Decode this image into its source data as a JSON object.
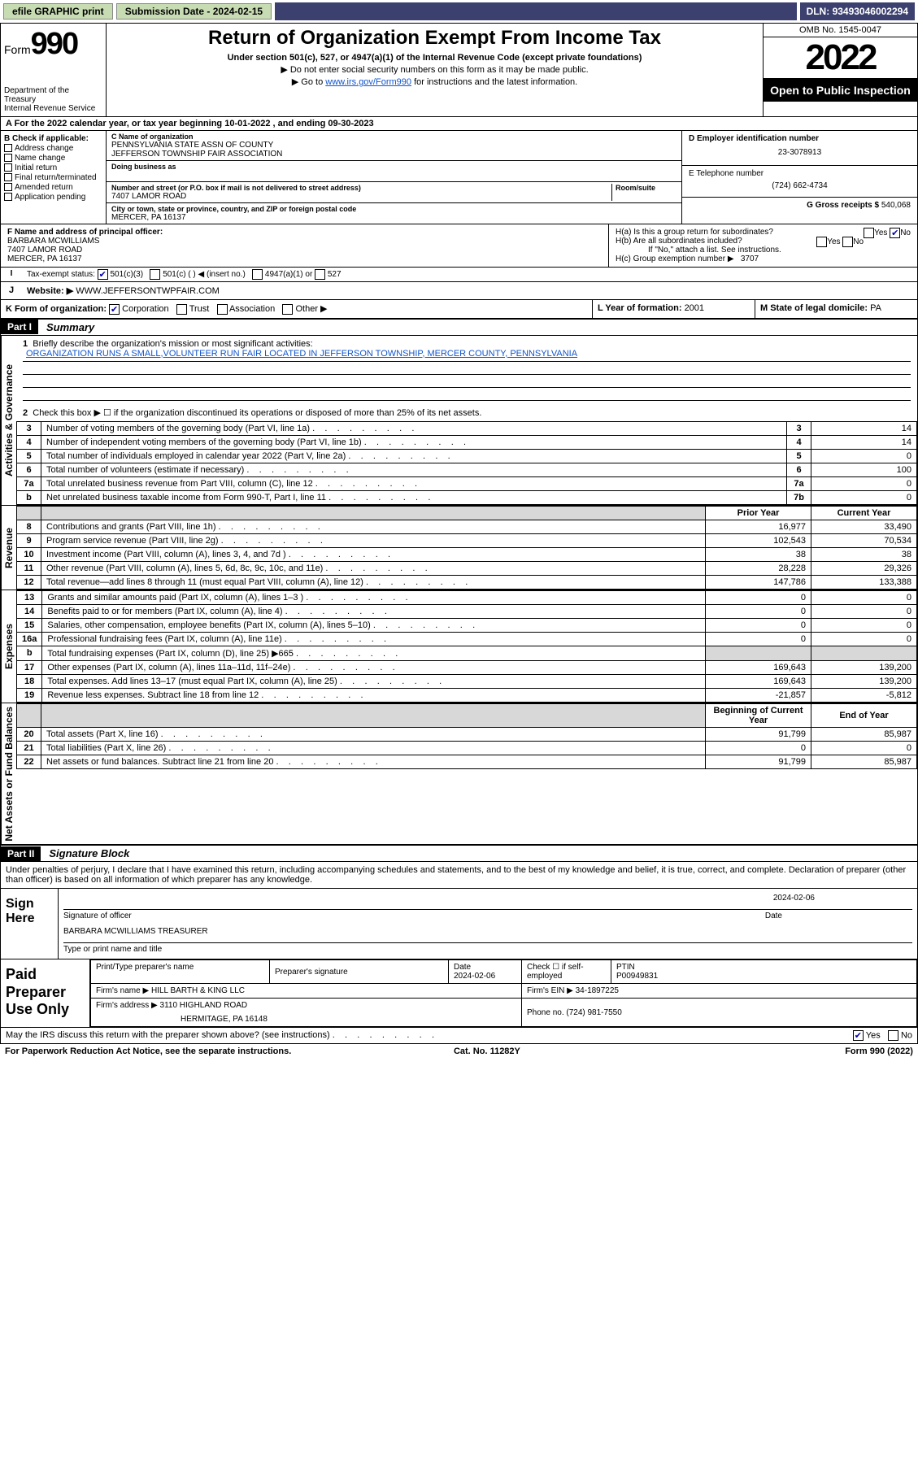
{
  "topbar": {
    "efile": "efile GRAPHIC print",
    "subdate_label": "Submission Date - ",
    "subdate": "2024-02-15",
    "dln_label": "DLN: ",
    "dln": "93493046002294"
  },
  "header": {
    "form": "Form",
    "num": "990",
    "dept": "Department of the Treasury",
    "irs": "Internal Revenue Service",
    "title": "Return of Organization Exempt From Income Tax",
    "under": "Under section 501(c), 527, or 4947(a)(1) of the Internal Revenue Code (except private foundations)",
    "ssn": "▶ Do not enter social security numbers on this form as it may be made public.",
    "goto1": "▶ Go to ",
    "goto_link": "www.irs.gov/Form990",
    "goto2": " for instructions and the latest information.",
    "omb": "OMB No. 1545-0047",
    "year": "2022",
    "open": "Open to Public Inspection"
  },
  "lineA": {
    "text": "A For the 2022 calendar year, or tax year beginning ",
    "begin": "10-01-2022",
    "mid": " , and ending ",
    "end": "09-30-2023"
  },
  "sectB": {
    "label": "B Check if applicable:",
    "items": [
      "Address change",
      "Name change",
      "Initial return",
      "Final return/terminated",
      "Amended return",
      "Application pending"
    ]
  },
  "sectC": {
    "name_lbl": "C Name of organization",
    "name1": "PENNSYLVANIA STATE ASSN OF COUNTY",
    "name2": "JEFFERSON TOWNSHIP FAIR ASSOCIATION",
    "dba_lbl": "Doing business as",
    "addr_lbl": "Number and street (or P.O. box if mail is not delivered to street address)",
    "room_lbl": "Room/suite",
    "addr": "7407 LAMOR ROAD",
    "city_lbl": "City or town, state or province, country, and ZIP or foreign postal code",
    "city": "MERCER, PA  16137"
  },
  "sectD": {
    "ein_lbl": "D Employer identification number",
    "ein": "23-3078913",
    "tel_lbl": "E Telephone number",
    "tel": "(724) 662-4734",
    "gross_lbl": "G Gross receipts $ ",
    "gross": "540,068"
  },
  "sectF": {
    "lbl": "F Name and address of principal officer:",
    "name": "BARBARA MCWILLIAMS",
    "addr1": "7407 LAMOR ROAD",
    "addr2": "MERCER, PA  16137"
  },
  "sectH": {
    "a": "H(a)  Is this a group return for subordinates?",
    "b": "H(b)  Are all subordinates included?",
    "yes": "Yes",
    "no": "No",
    "ifno": "If \"No,\" attach a list. See instructions.",
    "c": "H(c)  Group exemption number ▶",
    "cval": "3707"
  },
  "taxexempt": {
    "lbl": "Tax-exempt status:",
    "o1": "501(c)(3)",
    "o2": "501(c) (  ) ◀ (insert no.)",
    "o3": "4947(a)(1) or",
    "o4": "527"
  },
  "website": {
    "lbl": "Website: ▶",
    "val": "WWW.JEFFERSONTWPFAIR.COM"
  },
  "lineK": {
    "lbl": "K Form of organization:",
    "corp": "Corporation",
    "trust": "Trust",
    "assoc": "Association",
    "other": "Other ▶"
  },
  "lineL": {
    "lbl": "L Year of formation: ",
    "val": "2001"
  },
  "lineM": {
    "lbl": "M State of legal domicile: ",
    "val": "PA"
  },
  "part1": {
    "hdr": "Part I",
    "title": "Summary",
    "q1": "Briefly describe the organization's mission or most significant activities:",
    "mission": "ORGANIZATION RUNS A SMALL,VOLUNTEER RUN FAIR LOCATED IN JEFFERSON TOWNSHIP, MERCER COUNTY, PENNSYLVANIA",
    "q2": "Check this box ▶ ☐  if the organization discontinued its operations or disposed of more than 25% of its net assets.",
    "vlabels": {
      "gov": "Activities & Governance",
      "rev": "Revenue",
      "exp": "Expenses",
      "net": "Net Assets or Fund Balances"
    },
    "gov_rows": [
      {
        "n": "3",
        "t": "Number of voting members of the governing body (Part VI, line 1a)",
        "box": "3",
        "v": "14"
      },
      {
        "n": "4",
        "t": "Number of independent voting members of the governing body (Part VI, line 1b)",
        "box": "4",
        "v": "14"
      },
      {
        "n": "5",
        "t": "Total number of individuals employed in calendar year 2022 (Part V, line 2a)",
        "box": "5",
        "v": "0"
      },
      {
        "n": "6",
        "t": "Total number of volunteers (estimate if necessary)",
        "box": "6",
        "v": "100"
      },
      {
        "n": "7a",
        "t": "Total unrelated business revenue from Part VIII, column (C), line 12",
        "box": "7a",
        "v": "0"
      },
      {
        "n": "b",
        "t": "Net unrelated business taxable income from Form 990-T, Part I, line 11",
        "box": "7b",
        "v": "0"
      }
    ],
    "pyhdr": "Prior Year",
    "cyhdr": "Current Year",
    "rev_rows": [
      {
        "n": "8",
        "t": "Contributions and grants (Part VIII, line 1h)",
        "py": "16,977",
        "cy": "33,490"
      },
      {
        "n": "9",
        "t": "Program service revenue (Part VIII, line 2g)",
        "py": "102,543",
        "cy": "70,534"
      },
      {
        "n": "10",
        "t": "Investment income (Part VIII, column (A), lines 3, 4, and 7d )",
        "py": "38",
        "cy": "38"
      },
      {
        "n": "11",
        "t": "Other revenue (Part VIII, column (A), lines 5, 6d, 8c, 9c, 10c, and 11e)",
        "py": "28,228",
        "cy": "29,326"
      },
      {
        "n": "12",
        "t": "Total revenue—add lines 8 through 11 (must equal Part VIII, column (A), line 12)",
        "py": "147,786",
        "cy": "133,388"
      }
    ],
    "exp_rows": [
      {
        "n": "13",
        "t": "Grants and similar amounts paid (Part IX, column (A), lines 1–3 )",
        "py": "0",
        "cy": "0"
      },
      {
        "n": "14",
        "t": "Benefits paid to or for members (Part IX, column (A), line 4)",
        "py": "0",
        "cy": "0"
      },
      {
        "n": "15",
        "t": "Salaries, other compensation, employee benefits (Part IX, column (A), lines 5–10)",
        "py": "0",
        "cy": "0"
      },
      {
        "n": "16a",
        "t": "Professional fundraising fees (Part IX, column (A), line 11e)",
        "py": "0",
        "cy": "0"
      },
      {
        "n": "b",
        "t": "Total fundraising expenses (Part IX, column (D), line 25) ▶665",
        "py": "",
        "cy": "",
        "grey": true
      },
      {
        "n": "17",
        "t": "Other expenses (Part IX, column (A), lines 11a–11d, 11f–24e)",
        "py": "169,643",
        "cy": "139,200"
      },
      {
        "n": "18",
        "t": "Total expenses. Add lines 13–17 (must equal Part IX, column (A), line 25)",
        "py": "169,643",
        "cy": "139,200"
      },
      {
        "n": "19",
        "t": "Revenue less expenses. Subtract line 18 from line 12",
        "py": "-21,857",
        "cy": "-5,812"
      }
    ],
    "byhdr": "Beginning of Current Year",
    "eyhdr": "End of Year",
    "net_rows": [
      {
        "n": "20",
        "t": "Total assets (Part X, line 16)",
        "py": "91,799",
        "cy": "85,987"
      },
      {
        "n": "21",
        "t": "Total liabilities (Part X, line 26)",
        "py": "0",
        "cy": "0"
      },
      {
        "n": "22",
        "t": "Net assets or fund balances. Subtract line 21 from line 20",
        "py": "91,799",
        "cy": "85,987"
      }
    ]
  },
  "part2": {
    "hdr": "Part II",
    "title": "Signature Block",
    "penalty": "Under penalties of perjury, I declare that I have examined this return, including accompanying schedules and statements, and to the best of my knowledge and belief, it is true, correct, and complete. Declaration of preparer (other than officer) is based on all information of which preparer has any knowledge.",
    "sign": "Sign Here",
    "sigoff": "Signature of officer",
    "sigdate": "Date",
    "sigdateval": "2024-02-06",
    "signame": "BARBARA MCWILLIAMS TREASURER",
    "sigtype": "Type or print name and title",
    "paid": "Paid Preparer Use Only",
    "p_name_lbl": "Print/Type preparer's name",
    "p_sig_lbl": "Preparer's signature",
    "p_date_lbl": "Date",
    "p_date": "2024-02-06",
    "p_check": "Check ☐ if self-employed",
    "p_ptin_lbl": "PTIN",
    "p_ptin": "P00949831",
    "p_firm_lbl": "Firm's name      ▶",
    "p_firm": "HILL BARTH & KING LLC",
    "p_ein_lbl": "Firm's EIN ▶",
    "p_ein": "34-1897225",
    "p_addr_lbl": "Firm's address ▶",
    "p_addr1": "3110 HIGHLAND ROAD",
    "p_addr2": "HERMITAGE, PA  16148",
    "p_phone_lbl": "Phone no. ",
    "p_phone": "(724) 981-7550",
    "may": "May the IRS discuss this return with the preparer shown above? (see instructions)",
    "may_yes": "Yes",
    "may_no": "No"
  },
  "footer": {
    "pra": "For Paperwork Reduction Act Notice, see the separate instructions.",
    "cat": "Cat. No. 11282Y",
    "form": "Form 990 (2022)"
  }
}
